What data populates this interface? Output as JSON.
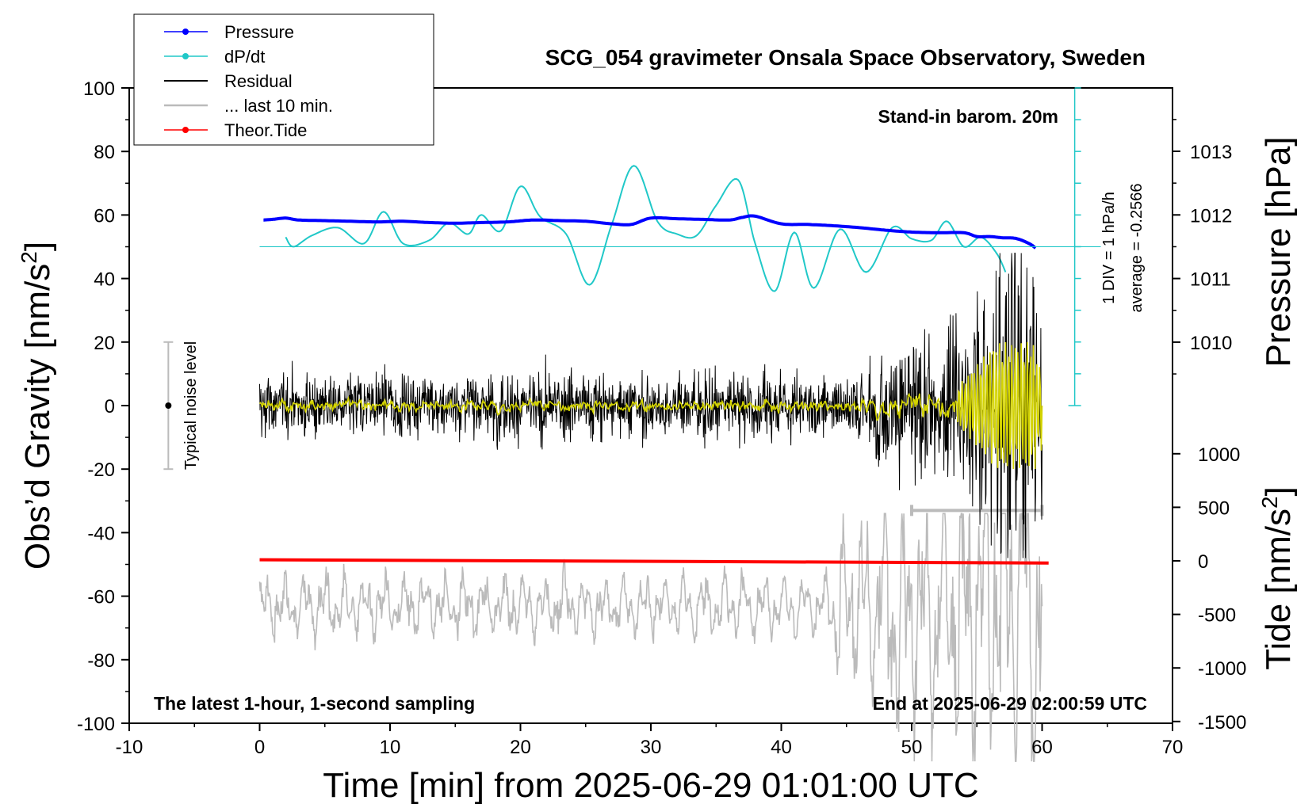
{
  "chart_data": {
    "type": "line",
    "title": "SCG_054 gravimeter Onsala Space Observatory, Sweden",
    "xlabel": "Time [min] from 2025-06-29 01:01:00 UTC",
    "ylabel": "Obs'd Gravity [nm/s²]",
    "y2label_pressure": "Pressure [hPa]",
    "y2label_tide": "Tide [nm/s²]",
    "xlim": [
      -10,
      70
    ],
    "ylim": [
      -100,
      100
    ],
    "pressure_lim": [
      1009,
      1014
    ],
    "tide_lim": [
      -1500,
      1000
    ],
    "x_ticks": [
      "-10",
      "0",
      "10",
      "20",
      "30",
      "40",
      "50",
      "60",
      "70"
    ],
    "y_ticks": [
      "100",
      "80",
      "60",
      "40",
      "20",
      "0",
      "-20",
      "-40",
      "-60",
      "-80",
      "-100"
    ],
    "pressure_ticks": [
      "1013",
      "1012",
      "1011",
      "1010"
    ],
    "tide_ticks": [
      "1000",
      "500",
      "0",
      "-500",
      "-1000",
      "-1500"
    ],
    "grid": false,
    "legend_position": "top-left",
    "legend": [
      {
        "label": "Pressure",
        "color": "#0000ff",
        "marker": "dot"
      },
      {
        "label": "dP/dt",
        "color": "#20c8c8",
        "marker": "dot"
      },
      {
        "label": "Residual",
        "color": "#000000",
        "marker": "none"
      },
      {
        "label": "... last 10 min.",
        "color": "#bbbbbb",
        "marker": "none"
      },
      {
        "label": "Theor.Tide",
        "color": "#ff0000",
        "marker": "dot"
      }
    ],
    "annotations": {
      "barometer": "Stand-in barom. 20m",
      "div_scale": "1 DIV = 1 hPa/h",
      "average": "average = -0.2566",
      "noise": "Typical noise level",
      "sampling": "The latest 1-hour, 1-second sampling",
      "end_time": "End at 2025-06-29 02:00:59 UTC"
    },
    "series": [
      {
        "name": "Pressure",
        "unit": "hPa",
        "color": "#0000ff",
        "x": [
          0.3,
          1,
          2,
          3,
          5,
          7,
          9,
          11,
          13,
          15,
          17,
          19,
          21,
          23,
          25,
          27,
          28.5,
          30,
          32,
          34,
          36,
          37,
          38,
          40,
          42,
          44,
          46,
          48,
          50,
          52,
          54,
          55,
          56,
          57,
          58,
          59,
          59.5
        ],
        "y": [
          1011.92,
          1011.93,
          1011.95,
          1011.92,
          1011.91,
          1011.9,
          1011.89,
          1011.9,
          1011.88,
          1011.87,
          1011.88,
          1011.89,
          1011.92,
          1011.91,
          1011.9,
          1011.86,
          1011.85,
          1011.95,
          1011.94,
          1011.93,
          1011.92,
          1011.96,
          1011.98,
          1011.86,
          1011.85,
          1011.83,
          1011.8,
          1011.76,
          1011.73,
          1011.72,
          1011.72,
          1011.66,
          1011.66,
          1011.64,
          1011.63,
          1011.55,
          1011.48
        ]
      },
      {
        "name": "dP/dt",
        "unit": "hPa/h (1 DIV = 1 hPa/h)",
        "color": "#20c8c8",
        "zero_line": 1011.5,
        "x": [
          2,
          2.6,
          4,
          6,
          8,
          9.5,
          11,
          13,
          14.5,
          16,
          17,
          18.5,
          20,
          21.5,
          23.5,
          25.3,
          27,
          28.7,
          30.5,
          32,
          33.5,
          35,
          36.7,
          38,
          39.5,
          41,
          42.5,
          44.5,
          46.5,
          48.5,
          50,
          51.5,
          52.7,
          54,
          55.3,
          56.5,
          57.2
        ],
        "y": [
          0.3,
          0.0,
          0.35,
          0.6,
          0.1,
          1.1,
          0.1,
          0.2,
          0.75,
          0.4,
          1.0,
          0.5,
          1.9,
          0.95,
          0.4,
          -1.2,
          0.7,
          2.55,
          0.8,
          0.4,
          0.35,
          1.3,
          2.1,
          0.1,
          -1.4,
          0.45,
          -1.3,
          0.55,
          -0.8,
          0.6,
          0.25,
          0.2,
          0.8,
          0.0,
          0.3,
          -0.2,
          -0.8
        ]
      },
      {
        "name": "Residual",
        "unit": "nm/s²",
        "color": "#000000",
        "x_range": [
          0,
          60
        ],
        "amplitude_typical": 8,
        "amplitude_max": 48
      },
      {
        "name": "Residual smoothed",
        "unit": "nm/s²",
        "color": "#d4d400",
        "x_range": [
          0,
          60
        ]
      },
      {
        "name": "... last 10 min.",
        "unit": "nm/s² (scaled)",
        "color": "#bbbbbb",
        "x_range": [
          0,
          60
        ]
      },
      {
        "name": "Theor.Tide",
        "unit": "nm/s²",
        "color": "#ff0000",
        "x": [
          0,
          60.5
        ],
        "y": [
          10,
          -20
        ]
      }
    ],
    "noise_bar": {
      "x": -7,
      "center": 0,
      "half_range": 20
    },
    "last10_bar": {
      "x_start": 50,
      "x_end": 60,
      "y": -33
    }
  }
}
